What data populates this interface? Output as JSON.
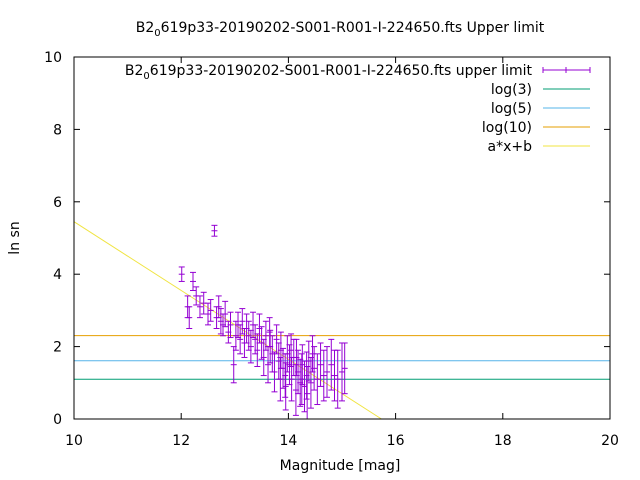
{
  "chart_data": {
    "type": "scatter",
    "title": {
      "pre": "B2",
      "sub": "0",
      "post": "619p33-20190202-S001-R001-I-224650.fts Upper limit"
    },
    "xlabel": "Magnitude [mag]",
    "ylabel": "ln sn",
    "xlim": [
      10,
      20
    ],
    "ylim": [
      0,
      10
    ],
    "xticks": [
      "10",
      "12",
      "14",
      "16",
      "18",
      "20"
    ],
    "yticks": [
      "0",
      "2",
      "4",
      "6",
      "8",
      "10"
    ],
    "grid": false,
    "legend_position": "top-right",
    "legend": [
      {
        "pre": "B2",
        "sub": "0",
        "post": "619p33-20190202-S001-R001-I-224650.fts upper limit",
        "color": "#9400d3",
        "style": "errorbars"
      },
      {
        "label": "log(3)",
        "color": "#009e73",
        "style": "line"
      },
      {
        "label": "log(5)",
        "color": "#56b4e9",
        "style": "line"
      },
      {
        "label": "log(10)",
        "color": "#e69f00",
        "style": "line"
      },
      {
        "label": "a*x+b",
        "color": "#f0e442",
        "style": "line"
      }
    ],
    "hlines": [
      {
        "name": "log(3)",
        "y": 1.0986,
        "color": "#009e73"
      },
      {
        "name": "log(5)",
        "y": 1.6094,
        "color": "#56b4e9"
      },
      {
        "name": "log(10)",
        "y": 2.3026,
        "color": "#e69f00"
      }
    ],
    "fit_line": {
      "name": "a*x+b",
      "a": -0.95,
      "b": 14.95,
      "x_range": [
        10,
        15.74
      ],
      "color": "#f0e442"
    },
    "series": [
      {
        "name": "B2_0619p33-20190202-S001-R001-I-224650.fts upper limit",
        "color": "#9400d3",
        "points": [
          [
            12.01,
            4.0,
            0.2
          ],
          [
            12.12,
            3.1,
            0.3
          ],
          [
            12.15,
            2.8,
            0.3
          ],
          [
            12.22,
            3.8,
            0.25
          ],
          [
            12.28,
            3.4,
            0.25
          ],
          [
            12.35,
            3.1,
            0.3
          ],
          [
            12.42,
            3.2,
            0.3
          ],
          [
            12.5,
            2.9,
            0.3
          ],
          [
            12.55,
            3.0,
            0.3
          ],
          [
            12.62,
            5.2,
            0.15
          ],
          [
            12.66,
            2.8,
            0.3
          ],
          [
            12.7,
            3.1,
            0.3
          ],
          [
            12.74,
            2.7,
            0.35
          ],
          [
            12.78,
            2.6,
            0.3
          ],
          [
            12.82,
            2.9,
            0.35
          ],
          [
            12.88,
            2.4,
            0.3
          ],
          [
            12.92,
            2.6,
            0.35
          ],
          [
            12.98,
            1.5,
            0.5
          ],
          [
            13.02,
            2.3,
            0.4
          ],
          [
            13.06,
            2.6,
            0.35
          ],
          [
            13.1,
            2.2,
            0.4
          ],
          [
            13.14,
            2.7,
            0.35
          ],
          [
            13.18,
            2.1,
            0.4
          ],
          [
            13.22,
            2.5,
            0.4
          ],
          [
            13.26,
            2.3,
            0.4
          ],
          [
            13.3,
            2.0,
            0.45
          ],
          [
            13.34,
            2.6,
            0.35
          ],
          [
            13.38,
            2.2,
            0.4
          ],
          [
            13.42,
            1.9,
            0.45
          ],
          [
            13.46,
            2.5,
            0.4
          ],
          [
            13.5,
            2.1,
            0.45
          ],
          [
            13.54,
            1.7,
            0.5
          ],
          [
            13.58,
            2.3,
            0.4
          ],
          [
            13.62,
            1.5,
            0.5
          ],
          [
            13.66,
            2.0,
            0.45
          ],
          [
            13.7,
            1.8,
            0.5
          ],
          [
            13.74,
            1.3,
            0.55
          ],
          [
            13.78,
            2.2,
            0.4
          ],
          [
            13.82,
            1.6,
            0.5
          ],
          [
            13.86,
            1.9,
            0.5
          ],
          [
            13.9,
            1.4,
            0.55
          ],
          [
            13.94,
            1.2,
            0.6
          ],
          [
            13.98,
            1.8,
            0.5
          ],
          [
            14.02,
            1.5,
            0.55
          ],
          [
            14.06,
            1.1,
            0.6
          ],
          [
            14.1,
            1.7,
            0.5
          ],
          [
            14.14,
            0.8,
            0.7
          ],
          [
            14.18,
            1.3,
            0.6
          ],
          [
            14.22,
            1.0,
            0.65
          ],
          [
            14.26,
            1.5,
            0.55
          ],
          [
            14.3,
            0.9,
            0.7
          ],
          [
            14.34,
            1.2,
            0.65
          ],
          [
            14.38,
            1.6,
            0.55
          ],
          [
            14.42,
            1.0,
            0.7
          ],
          [
            14.48,
            1.4,
            0.6
          ],
          [
            14.54,
            1.1,
            0.7
          ],
          [
            14.6,
            1.5,
            0.6
          ],
          [
            14.66,
            1.2,
            0.7
          ],
          [
            14.72,
            1.3,
            0.7
          ],
          [
            14.8,
            1.5,
            0.7
          ],
          [
            14.86,
            1.2,
            0.7
          ],
          [
            14.92,
            1.1,
            0.8
          ],
          [
            15.0,
            1.3,
            0.8
          ],
          [
            15.05,
            1.4,
            0.7
          ],
          [
            14.05,
            1.9,
            0.45
          ],
          [
            13.95,
            0.9,
            0.65
          ],
          [
            14.15,
            1.7,
            0.5
          ],
          [
            14.25,
            1.1,
            0.7
          ],
          [
            14.35,
            0.7,
            0.75
          ],
          [
            14.45,
            1.8,
            0.5
          ],
          [
            13.85,
            1.1,
            0.6
          ],
          [
            13.65,
            2.4,
            0.4
          ]
        ]
      }
    ]
  }
}
